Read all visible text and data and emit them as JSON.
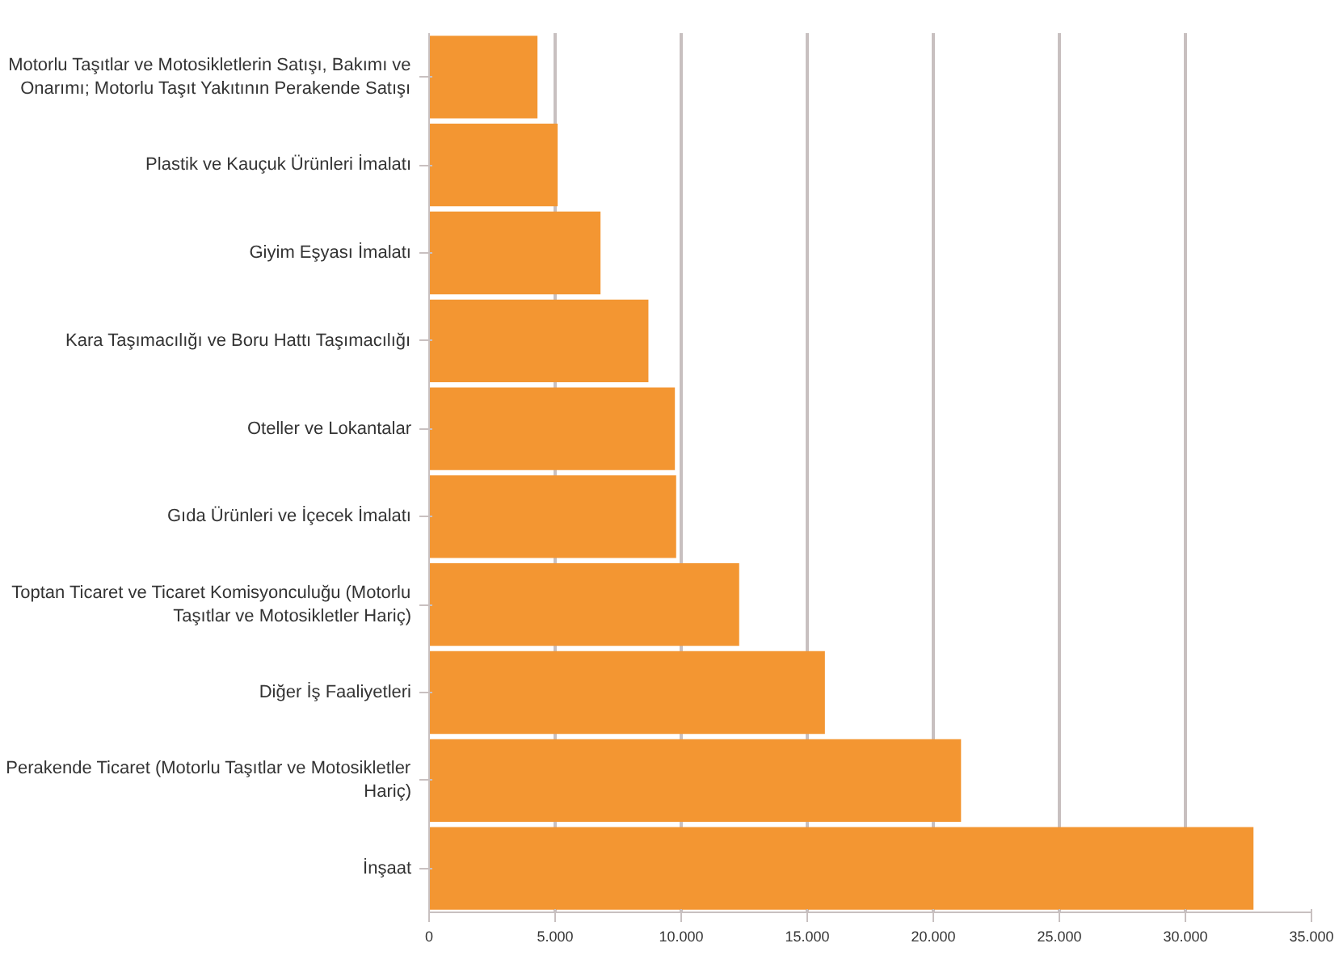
{
  "chart_data": {
    "type": "bar",
    "orientation": "horizontal",
    "categories": [
      "Motorlu Taşıtlar ve Motosikletlerin Satışı, Bakımı ve Onarımı; Motorlu Taşıt Yakıtının Perakende Satışı",
      "Plastik ve Kauçuk Ürünleri İmalatı",
      "Giyim Eşyası İmalatı",
      "Kara Taşımacılığı ve Boru Hattı Taşımacılığı",
      "Oteller ve Lokantalar",
      "Gıda Ürünleri ve İçecek İmalatı",
      "Toptan Ticaret ve Ticaret Komisyonculuğu (Motorlu Taşıtlar ve Motosikletler Hariç)",
      "Diğer İş Faaliyetleri",
      "Perakende Ticaret (Motorlu Taşıtlar ve Motosikletler Hariç)",
      "İnşaat"
    ],
    "values": [
      4300,
      5100,
      6800,
      8700,
      9750,
      9800,
      12300,
      15700,
      21100,
      32700
    ],
    "color": "#f39632",
    "xlim": [
      0,
      35000
    ],
    "xticks": [
      0,
      {
        "value": 5000,
        "label": "5.000"
      },
      {
        "value": 10000,
        "label": "10.000"
      },
      {
        "value": 15000,
        "label": "15.000"
      },
      {
        "value": 20000,
        "label": "20.000"
      },
      {
        "value": 25000,
        "label": "25.000"
      },
      {
        "value": 30000,
        "label": "30.000"
      },
      {
        "value": 35000,
        "label": "35.000"
      }
    ],
    "grid": "x"
  }
}
